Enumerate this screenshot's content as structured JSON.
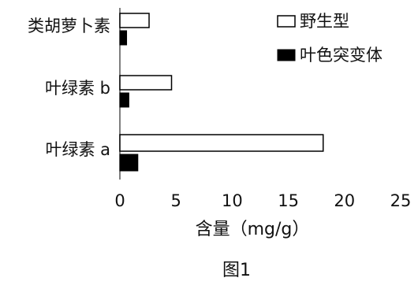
{
  "chart_data": {
    "type": "bar",
    "orientation": "horizontal",
    "categories": [
      "叶绿素 a",
      "叶绿素 b",
      "类胡萝卜素"
    ],
    "series": [
      {
        "name": "野生型",
        "values": [
          18.1,
          4.6,
          2.6
        ],
        "color": "#ffffff"
      },
      {
        "name": "叶色突变体",
        "values": [
          1.6,
          0.8,
          0.6
        ],
        "color": "#000000"
      }
    ],
    "xlabel": "含量（mg/g）",
    "xlim": [
      0,
      25
    ],
    "xticks": [
      0,
      5,
      10,
      15,
      20,
      25
    ],
    "grid": false,
    "legend_position": "top-right"
  },
  "caption": "图1"
}
